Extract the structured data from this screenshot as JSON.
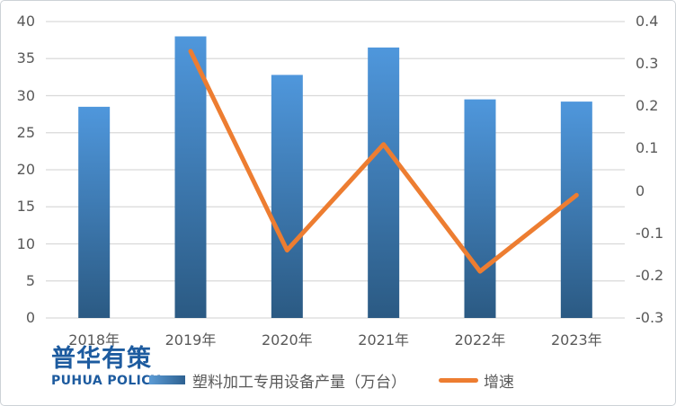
{
  "logo": {
    "cn": "普华有策",
    "en": "PUHUA POLICY"
  },
  "legend": {
    "bar_label": "塑料加工专用设备产量（万台）",
    "line_label": "增速"
  },
  "colors": {
    "bar_gradient_top": "#4F97DC",
    "bar_gradient_bottom": "#2B5A83",
    "line": "#ED7D31",
    "gridline": "#D9D9D9",
    "axis_text": "#595959",
    "logo_blue": "#1D5B9F"
  },
  "chart_data": {
    "type": "bar",
    "subtype": "bar+line combo, dual axis",
    "title": "",
    "categories": [
      "2018年",
      "2019年",
      "2020年",
      "2021年",
      "2022年",
      "2023年"
    ],
    "series": [
      {
        "name": "塑料加工专用设备产量（万台）",
        "type": "bar",
        "axis": "left",
        "values": [
          28.5,
          38.0,
          32.8,
          36.5,
          29.5,
          29.2
        ]
      },
      {
        "name": "增速",
        "type": "line",
        "axis": "right",
        "values": [
          null,
          0.33,
          -0.14,
          0.11,
          -0.19,
          -0.01
        ]
      }
    ],
    "left_axis": {
      "min": 0,
      "max": 40,
      "step": 5,
      "tick_labels": [
        "0",
        "5",
        "10",
        "15",
        "20",
        "25",
        "30",
        "35",
        "40"
      ]
    },
    "right_axis": {
      "min": -0.3,
      "max": 0.4,
      "step": 0.1,
      "tick_labels": [
        "-0.3",
        "-0.2",
        "-0.1",
        "0",
        "0.1",
        "0.2",
        "0.3",
        "0.4"
      ]
    },
    "grid": true,
    "legend_position": "bottom"
  }
}
